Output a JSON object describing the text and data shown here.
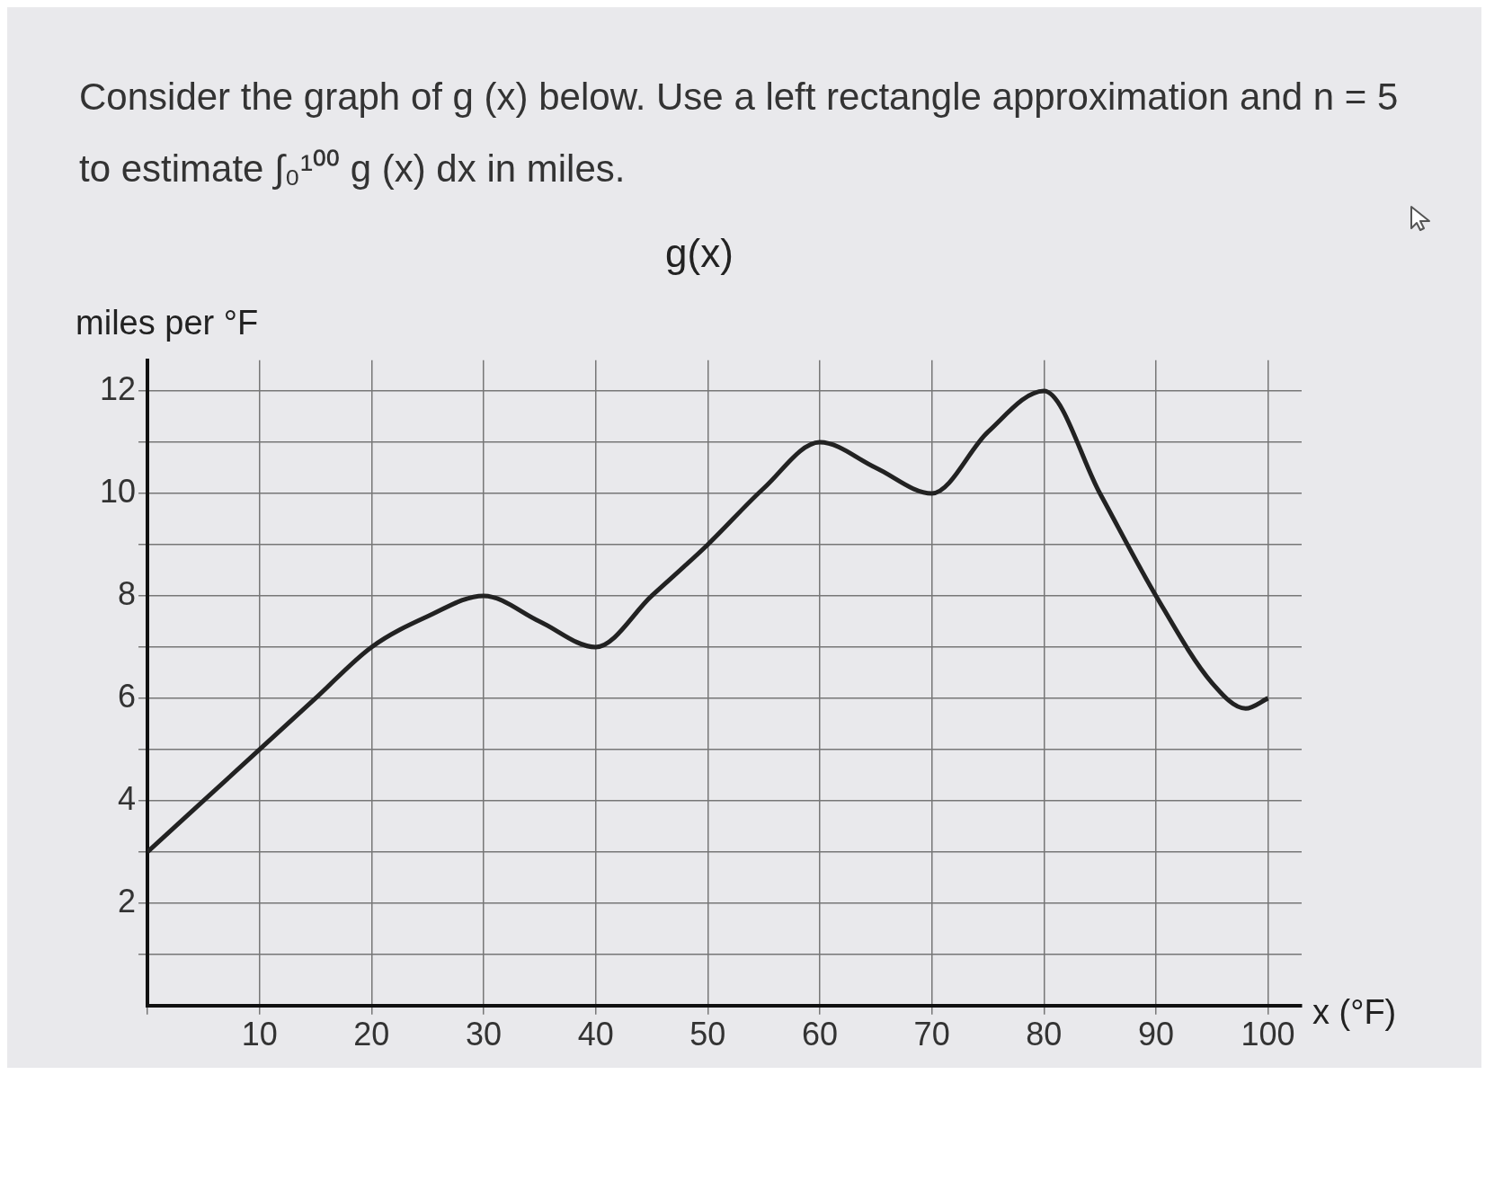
{
  "chart_data": {
    "type": "line",
    "title": "g(x)",
    "ylabel": "miles per °F",
    "xlabel": "x (°F)",
    "annotations": [
      "Consider the graph of g (x) below. Use a left rectangle approximation and n = 5 to estimate ∫₀¹⁰⁰ g (x) dx in miles."
    ],
    "x": [
      0,
      5,
      10,
      15,
      20,
      25,
      30,
      35,
      40,
      45,
      50,
      55,
      60,
      65,
      70,
      75,
      80,
      85,
      90,
      95,
      98,
      100
    ],
    "series": [
      {
        "color": "#222222",
        "values": [
          3,
          4,
          5,
          6,
          7,
          7.6,
          8,
          7.5,
          7,
          8,
          9,
          10.1,
          11,
          10.5,
          10,
          11.2,
          12,
          10,
          8,
          6.3,
          5.8,
          6
        ]
      }
    ],
    "xlim": [
      0,
      103
    ],
    "ylim": [
      0,
      12.6
    ],
    "xticks": [
      {
        "value": 0,
        "label": null
      },
      10,
      20,
      30,
      40,
      50,
      60,
      70,
      80,
      90,
      100
    ],
    "yticks": [
      {
        "value": 1,
        "label": null
      },
      2,
      {
        "value": 3,
        "label": null
      },
      4,
      {
        "value": 5,
        "label": null
      },
      6,
      {
        "value": 7,
        "label": null
      },
      8,
      {
        "value": 9,
        "label": null
      },
      10,
      {
        "value": 11,
        "label": null
      },
      12
    ],
    "grid": true,
    "legend": false,
    "marker": "none",
    "line_style": "solid"
  }
}
